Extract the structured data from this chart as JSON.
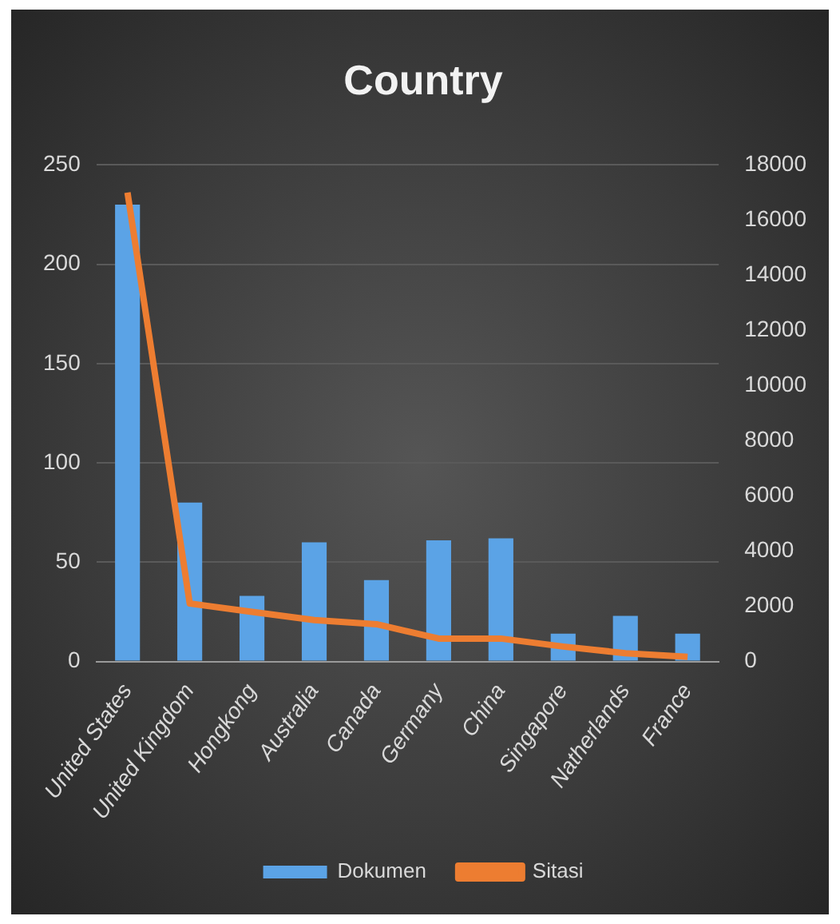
{
  "chart_data": {
    "type": "bar",
    "title": "Country",
    "categories": [
      "United States",
      "United Kingdom",
      "Hongkong",
      "Australia",
      "Canada",
      "Germany",
      "China",
      "Singapore",
      "Natherlands",
      "France"
    ],
    "series": [
      {
        "name": "Dokumen",
        "color": "#5ba3e6",
        "values": [
          230,
          80,
          33,
          60,
          41,
          61,
          62,
          14,
          23,
          14
        ]
      },
      {
        "name": "Sitasi",
        "type": "line",
        "axis": "y2",
        "color": "#ed7d31",
        "values": [
          17000,
          2100,
          1800,
          1500,
          1350,
          830,
          830,
          540,
          300,
          170
        ]
      }
    ],
    "ylim": [
      0,
      250
    ],
    "yticks": [
      0,
      50,
      100,
      150,
      200,
      250
    ],
    "y2lim": [
      0,
      18000
    ],
    "y2ticks": [
      0,
      2000,
      4000,
      6000,
      8000,
      10000,
      12000,
      14000,
      16000,
      18000
    ],
    "grid": "y",
    "legend": "bottom",
    "marker": "none"
  }
}
